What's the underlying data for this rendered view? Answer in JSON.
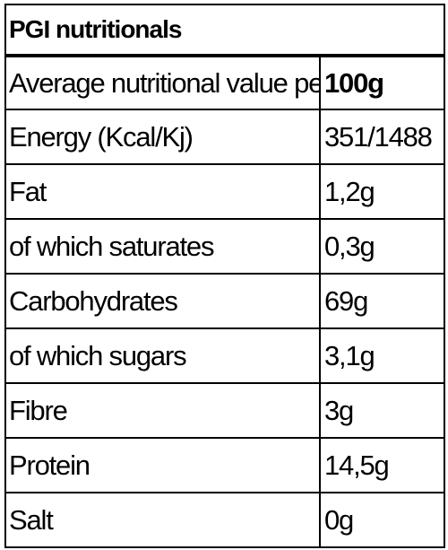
{
  "table": {
    "title": "PGI nutritionals",
    "rows": [
      {
        "label": "Average nutritional value per",
        "value": "100g"
      },
      {
        "label": "Energy (Kcal/Kj)",
        "value": "351/1488"
      },
      {
        "label": "Fat",
        "value": "1,2g"
      },
      {
        "label": "of which saturates",
        "value": "0,3g"
      },
      {
        "label": "Carbohydrates",
        "value": "69g"
      },
      {
        "label": "of which sugars",
        "value": "3,1g"
      },
      {
        "label": "Fibre",
        "value": "3g"
      },
      {
        "label": "Protein",
        "value": "14,5g"
      },
      {
        "label": "Salt",
        "value": "0g"
      }
    ]
  }
}
